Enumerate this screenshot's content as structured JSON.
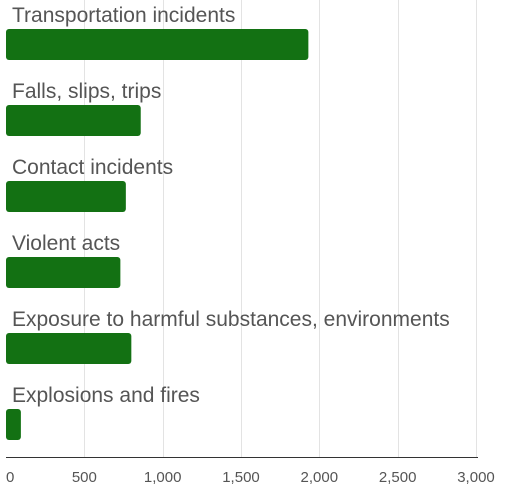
{
  "chart_data": {
    "type": "bar",
    "orientation": "horizontal",
    "categories": [
      "Transportation incidents",
      "Falls, slips, trips",
      "Contact incidents",
      "Violent acts",
      "Exposure to harmful substances, environments",
      "Explosions and fires"
    ],
    "values": [
      1930,
      860,
      765,
      730,
      800,
      95
    ],
    "bar_color": "#137113",
    "xlim": [
      0,
      3000
    ],
    "xticks": [
      0,
      500,
      1000,
      1500,
      2000,
      2500,
      3000
    ],
    "xtick_labels": [
      "0",
      "500",
      "1,000",
      "1,500",
      "2,000",
      "2,500",
      "3,000"
    ],
    "grid": true,
    "legend": "none",
    "title": "",
    "xlabel": "",
    "ylabel": ""
  }
}
